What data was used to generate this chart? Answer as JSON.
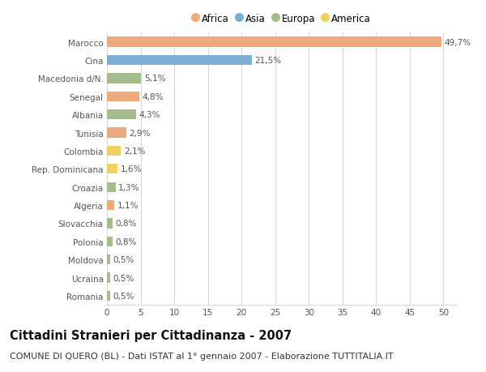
{
  "categories": [
    "Romania",
    "Ucraina",
    "Moldova",
    "Polonia",
    "Slovacchia",
    "Algeria",
    "Croazia",
    "Rep. Dominicana",
    "Colombia",
    "Tunisia",
    "Albania",
    "Senegal",
    "Macedonia d/N.",
    "Cina",
    "Marocco"
  ],
  "values": [
    0.5,
    0.5,
    0.5,
    0.8,
    0.8,
    1.1,
    1.3,
    1.6,
    2.1,
    2.9,
    4.3,
    4.8,
    5.1,
    21.5,
    49.7
  ],
  "labels": [
    "0,5%",
    "0,5%",
    "0,5%",
    "0,8%",
    "0,8%",
    "1,1%",
    "1,3%",
    "1,6%",
    "2,1%",
    "2,9%",
    "4,3%",
    "4,8%",
    "5,1%",
    "21,5%",
    "49,7%"
  ],
  "continents": [
    "Europa",
    "Europa",
    "Europa",
    "Europa",
    "Europa",
    "Africa",
    "Europa",
    "America",
    "America",
    "Africa",
    "Europa",
    "Africa",
    "Europa",
    "Asia",
    "Africa"
  ],
  "colors": {
    "Africa": "#EDAA7A",
    "Asia": "#7BAFD4",
    "Europa": "#A4BC8C",
    "America": "#F0D060"
  },
  "legend_items": [
    "Africa",
    "Asia",
    "Europa",
    "America"
  ],
  "legend_colors": [
    "#EDAA7A",
    "#7BAFD4",
    "#A4BC8C",
    "#F0D060"
  ],
  "xlim": [
    0,
    52
  ],
  "xticks": [
    0,
    5,
    10,
    15,
    20,
    25,
    30,
    35,
    40,
    45,
    50
  ],
  "title": "Cittadini Stranieri per Cittadinanza - 2007",
  "subtitle": "COMUNE DI QUERO (BL) - Dati ISTAT al 1° gennaio 2007 - Elaborazione TUTTITALIA.IT",
  "background_color": "#ffffff",
  "grid_color": "#d8d8d8",
  "bar_height": 0.55,
  "title_fontsize": 10.5,
  "subtitle_fontsize": 8,
  "label_fontsize": 7.5,
  "tick_fontsize": 7.5,
  "legend_fontsize": 8.5
}
